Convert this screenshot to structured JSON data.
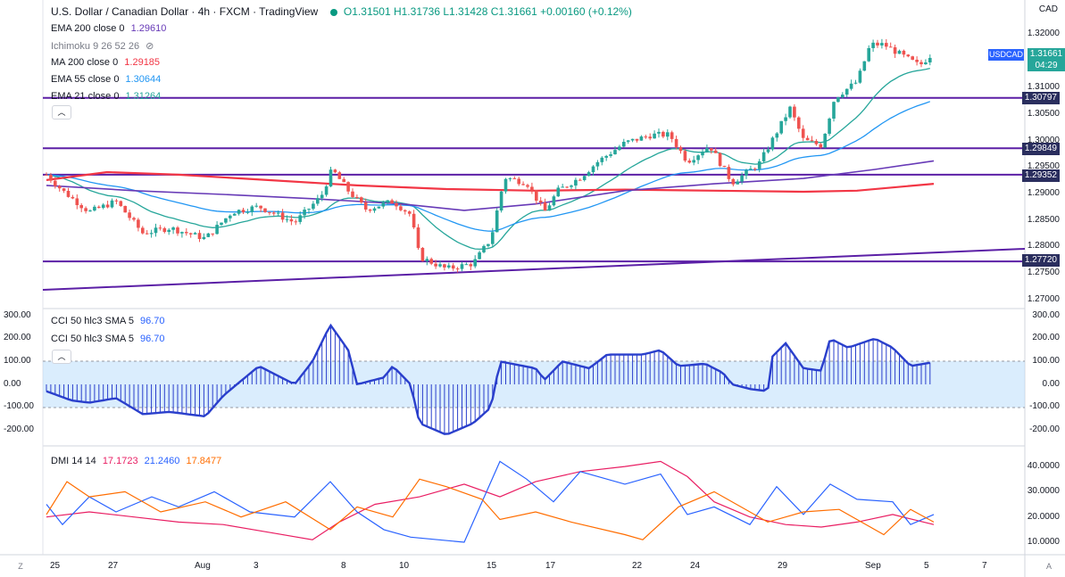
{
  "header": {
    "symbol_title": "U.S. Dollar / Canadian Dollar · 4h · FXCM · TradingView",
    "ohlc": "O1.31501  H1.31736  L1.31428  C1.31661  +0.00160 (+0.12%)"
  },
  "indicators": [
    {
      "label": "EMA 200 close 0",
      "value": "1.29610",
      "color": "#673ab7"
    },
    {
      "label": "Ichimoku 9 26 52 26",
      "value": "",
      "color": "#787b86"
    },
    {
      "label": "MA 200 close 0",
      "value": "1.29185",
      "color": "#f23645"
    },
    {
      "label": "EMA 55 close 0",
      "value": "1.30644",
      "color": "#2196f3"
    },
    {
      "label": "EMA 21 close 0",
      "value": "1.31264",
      "color": "#26a69a"
    }
  ],
  "price_axis": {
    "currency": "CAD",
    "ticks": [
      "1.32000",
      "1.31500",
      "1.31000",
      "1.30500",
      "1.30000",
      "1.29500",
      "1.29000",
      "1.28500",
      "1.28000",
      "1.27500",
      "1.27000"
    ],
    "symbol_badge": "USDCAD",
    "current_price": "1.31661",
    "countdown": "04:29",
    "level_tags": [
      "1.30797",
      "1.29849",
      "1.29352",
      "1.27720"
    ]
  },
  "cci": {
    "label1": "CCI 50 hlc3 SMA 5",
    "value1": "96.70",
    "label2": "CCI 50 hlc3 SMA 5",
    "value2": "96.70",
    "ticks": [
      "300.00",
      "200.00",
      "100.00",
      "0.00",
      "-100.00",
      "-200.00"
    ]
  },
  "dmi": {
    "label": "DMI 14 14",
    "plus": "17.1723",
    "minus": "21.2460",
    "adx": "17.8477",
    "ticks": [
      "40.0000",
      "30.0000",
      "20.0000",
      "10.0000"
    ]
  },
  "time_axis": [
    "25",
    "27",
    "Aug",
    "3",
    "8",
    "10",
    "15",
    "17",
    "22",
    "24",
    "29",
    "Sep",
    "5",
    "7"
  ],
  "corners": {
    "left": "Z",
    "right": "A"
  },
  "colors": {
    "up": "#26a69a",
    "down": "#ef5350",
    "level": "#5b1fa6",
    "ema55": "#2196f3",
    "ema21": "#26a69a",
    "ma200": "#f23645",
    "ema200": "#673ab7",
    "cci": "#2a3fcc",
    "plusdi": "#e91e63",
    "minusdi": "#2962ff",
    "adx": "#ff6d00"
  }
}
